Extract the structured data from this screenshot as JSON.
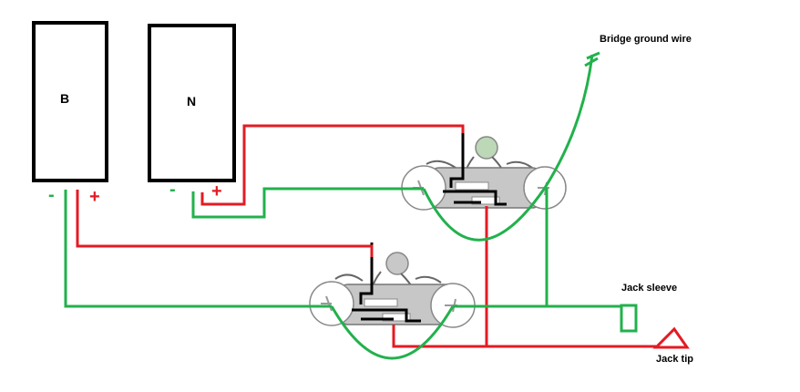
{
  "pickups": [
    {
      "label": "B",
      "neg_sign": "-",
      "pos_sign": "+"
    },
    {
      "label": "N",
      "neg_sign": "-",
      "pos_sign": "+"
    }
  ],
  "labels": {
    "bridge_ground": "Bridge ground  wire",
    "jack_sleeve": "Jack sleeve",
    "jack_tip": "Jack tip"
  },
  "colors": {
    "hot_wire": "#e31b23",
    "ground_wire": "#22b14c",
    "internal_wire": "#000000",
    "pot_body": "#b3b3b3",
    "outline": "#000000",
    "sign_negative": "#22b14c",
    "sign_positive": "#e31b23"
  }
}
